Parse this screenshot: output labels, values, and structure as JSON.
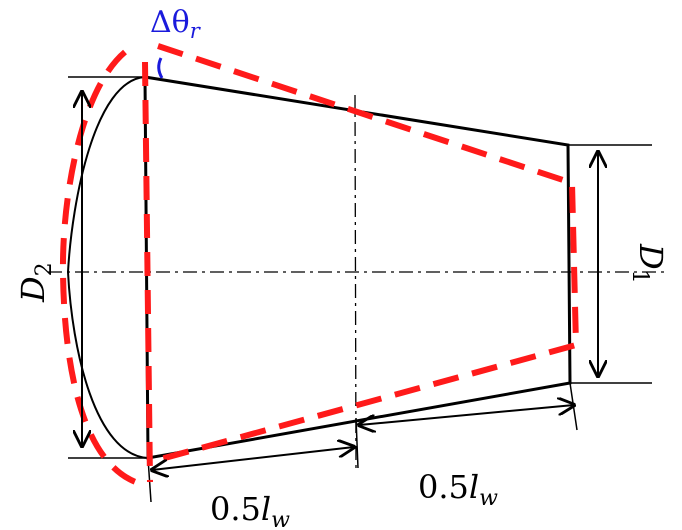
{
  "labels": {
    "angle": "Δθ",
    "angle_sub": "r",
    "d2": "D",
    "d2_sub": "2",
    "d1": "D",
    "d1_sub": "1",
    "half_length_left": "0.5",
    "half_length_left_var": "l",
    "half_length_left_sub": "w",
    "half_length_right": "0.5",
    "half_length_right_var": "l",
    "half_length_right_sub": "w"
  },
  "colors": {
    "outline": "#000000",
    "deformed": "#ff1a1a",
    "angle": "#1a1adc"
  }
}
